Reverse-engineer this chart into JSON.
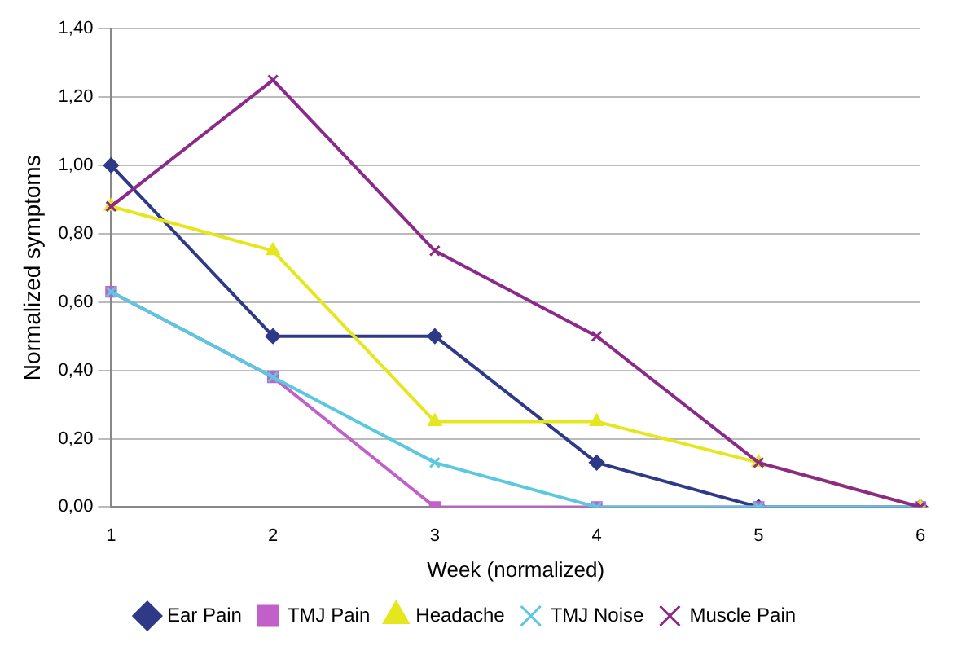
{
  "chart_data": {
    "type": "line",
    "xlabel": "Week (normalized)",
    "ylabel": "Normalized symptoms",
    "categories": [
      "1",
      "2",
      "3",
      "4",
      "5",
      "6"
    ],
    "series": [
      {
        "name": "Ear Pain",
        "color": "#2e3a87",
        "marker": "diamond",
        "values": [
          1.0,
          0.5,
          0.5,
          0.13,
          0,
          0
        ]
      },
      {
        "name": "TMJ Pain",
        "color": "#c060c8",
        "marker": "square",
        "values": [
          0.63,
          0.38,
          0,
          0,
          0,
          0
        ]
      },
      {
        "name": "Headache",
        "color": "#e6e61e",
        "marker": "triangle",
        "values": [
          0.88,
          0.75,
          0.25,
          0.25,
          0.13,
          0
        ]
      },
      {
        "name": "TMJ Noise",
        "color": "#5cc8e0",
        "marker": "cross",
        "values": [
          0.63,
          0.38,
          0.13,
          0,
          0,
          0
        ]
      },
      {
        "name": "Muscle Pain",
        "color": "#8b2a8a",
        "marker": "cross",
        "values": [
          0.88,
          1.25,
          0.75,
          0.5,
          0.13,
          0
        ]
      }
    ],
    "ylim": [
      0,
      1.4
    ],
    "yticks": [
      {
        "value": 0,
        "label": "0,00"
      },
      {
        "value": 0.2,
        "label": "0,20"
      },
      {
        "value": 0.4,
        "label": "0,40"
      },
      {
        "value": 0.6,
        "label": "0,60"
      },
      {
        "value": 0.8,
        "label": "0,80"
      },
      {
        "value": 1.0,
        "label": "1,00"
      },
      {
        "value": 1.2,
        "label": "1,20"
      },
      {
        "value": 1.4,
        "label": "1,40"
      }
    ],
    "grid": "y",
    "legend": "bottom",
    "line_style": "solid"
  }
}
